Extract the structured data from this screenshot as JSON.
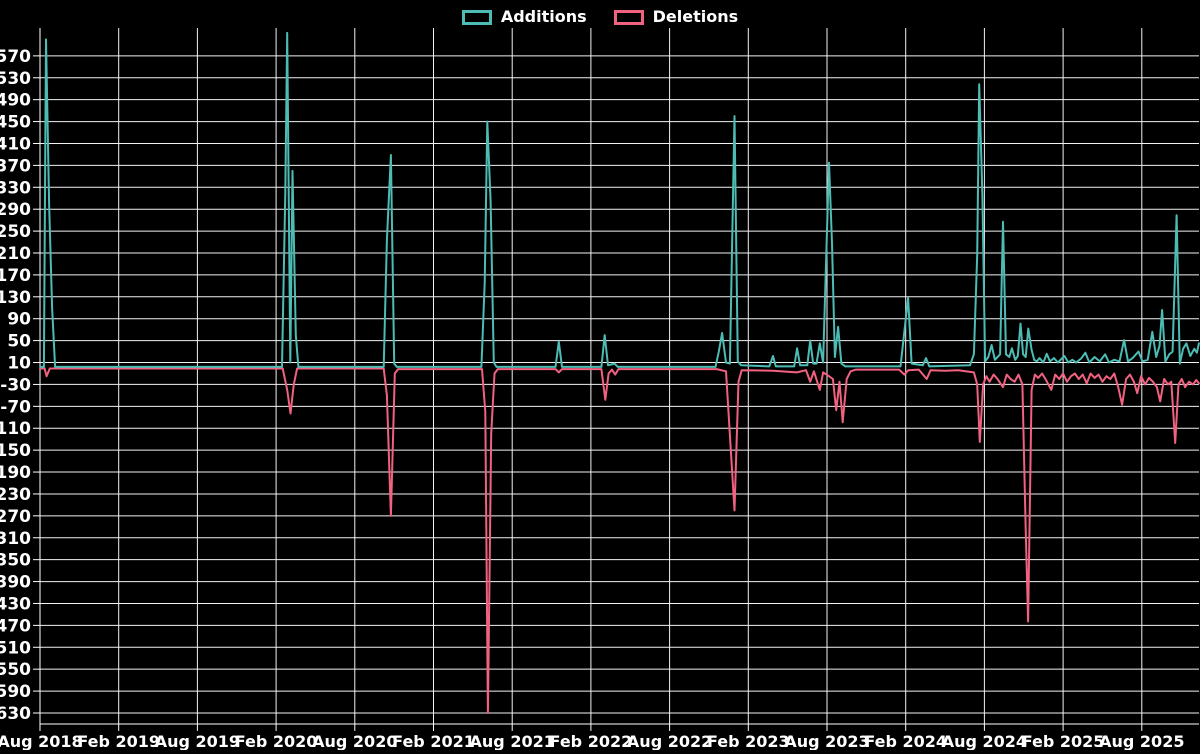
{
  "legend": {
    "additions_label": "Additions",
    "deletions_label": "Deletions"
  },
  "colors": {
    "background": "#000000",
    "grid": "#f2f2f2",
    "text": "#ffffff",
    "additions": "#4dbcb4",
    "deletions": "#f16180"
  },
  "chart_data": {
    "type": "line",
    "title": "",
    "xlabel": "",
    "ylabel": "",
    "legend_position": "top-center",
    "grid": true,
    "x_axis": {
      "unit": "months_since_first_tick",
      "tick_interval_months": 6,
      "tick_labels": [
        "Aug 2018",
        "Feb 2019",
        "Aug 2019",
        "Feb 2020",
        "Aug 2020",
        "Feb 2021",
        "Aug 2021",
        "Feb 2022",
        "Aug 2022",
        "Feb 2023",
        "Aug 2023",
        "Feb 2024",
        "Aug 2024",
        "Feb 2025",
        "Aug 2025"
      ]
    },
    "y_axis": {
      "tick_max": 570,
      "tick_min": -630,
      "tick_step": 40,
      "render_max": 615,
      "render_min": -650
    },
    "series": [
      {
        "name": "Additions",
        "color_key": "additions",
        "points": [
          [
            0,
            2
          ],
          [
            0.3,
            2
          ],
          [
            0.46,
            600
          ],
          [
            0.69,
            300
          ],
          [
            0.92,
            110
          ],
          [
            1.15,
            2
          ],
          [
            18.45,
            2
          ],
          [
            18.7,
            320
          ],
          [
            18.85,
            612
          ],
          [
            19.08,
            10
          ],
          [
            19.25,
            360
          ],
          [
            19.5,
            60
          ],
          [
            19.7,
            2
          ],
          [
            26.2,
            2
          ],
          [
            26.45,
            234
          ],
          [
            26.75,
            389
          ],
          [
            27.0,
            8
          ],
          [
            27.2,
            2
          ],
          [
            33.65,
            2
          ],
          [
            33.9,
            155
          ],
          [
            34.1,
            450
          ],
          [
            34.35,
            305
          ],
          [
            34.6,
            10
          ],
          [
            34.8,
            2
          ],
          [
            39.3,
            2
          ],
          [
            39.55,
            48
          ],
          [
            39.8,
            2
          ],
          [
            42.8,
            2
          ],
          [
            43.05,
            60
          ],
          [
            43.3,
            5
          ],
          [
            43.8,
            8
          ],
          [
            44.05,
            2
          ],
          [
            51.5,
            2
          ],
          [
            51.75,
            30
          ],
          [
            52.0,
            64
          ],
          [
            52.3,
            10
          ],
          [
            52.6,
            8
          ],
          [
            52.95,
            460
          ],
          [
            53.2,
            12
          ],
          [
            53.45,
            5
          ],
          [
            55.6,
            3
          ],
          [
            55.88,
            22
          ],
          [
            56.1,
            3
          ],
          [
            57.5,
            3
          ],
          [
            57.72,
            36
          ],
          [
            57.95,
            5
          ],
          [
            58.5,
            5
          ],
          [
            58.72,
            50
          ],
          [
            58.95,
            8
          ],
          [
            59.2,
            8
          ],
          [
            59.45,
            45
          ],
          [
            59.7,
            10
          ],
          [
            60.15,
            375
          ],
          [
            60.38,
            228
          ],
          [
            60.6,
            20
          ],
          [
            60.85,
            75
          ],
          [
            61.1,
            8
          ],
          [
            61.4,
            3
          ],
          [
            65.6,
            3
          ],
          [
            66.18,
            128
          ],
          [
            66.45,
            8
          ],
          [
            67.3,
            5
          ],
          [
            67.55,
            18
          ],
          [
            67.8,
            3
          ],
          [
            70.9,
            5
          ],
          [
            71.2,
            25
          ],
          [
            71.45,
            206
          ],
          [
            71.6,
            518
          ],
          [
            71.85,
            315
          ],
          [
            72.05,
            12
          ],
          [
            72.3,
            20
          ],
          [
            72.55,
            42
          ],
          [
            72.8,
            15
          ],
          [
            73.2,
            25
          ],
          [
            73.42,
            267
          ],
          [
            73.65,
            25
          ],
          [
            73.9,
            20
          ],
          [
            74.1,
            36
          ],
          [
            74.35,
            15
          ],
          [
            74.55,
            22
          ],
          [
            74.75,
            81
          ],
          [
            74.95,
            25
          ],
          [
            75.15,
            20
          ],
          [
            75.35,
            72
          ],
          [
            75.6,
            33
          ],
          [
            75.8,
            15
          ],
          [
            76.0,
            12
          ],
          [
            76.2,
            18
          ],
          [
            76.5,
            10
          ],
          [
            76.75,
            26
          ],
          [
            77.0,
            12
          ],
          [
            77.3,
            18
          ],
          [
            77.6,
            10
          ],
          [
            78.1,
            22
          ],
          [
            78.4,
            10
          ],
          [
            78.7,
            15
          ],
          [
            79.0,
            10
          ],
          [
            79.4,
            18
          ],
          [
            79.7,
            28
          ],
          [
            80.0,
            10
          ],
          [
            80.4,
            20
          ],
          [
            80.8,
            12
          ],
          [
            81.2,
            25
          ],
          [
            81.5,
            10
          ],
          [
            81.9,
            15
          ],
          [
            82.3,
            12
          ],
          [
            82.65,
            51
          ],
          [
            82.95,
            12
          ],
          [
            83.3,
            18
          ],
          [
            83.75,
            30
          ],
          [
            84.05,
            12
          ],
          [
            84.45,
            15
          ],
          [
            84.8,
            66
          ],
          [
            85.1,
            20
          ],
          [
            85.35,
            40
          ],
          [
            85.55,
            106
          ],
          [
            85.8,
            12
          ],
          [
            86.1,
            25
          ],
          [
            86.35,
            30
          ],
          [
            86.65,
            279
          ],
          [
            86.9,
            8
          ],
          [
            87.15,
            35
          ],
          [
            87.4,
            45
          ],
          [
            87.7,
            22
          ],
          [
            88.0,
            35
          ],
          [
            88.2,
            28
          ],
          [
            88.35,
            45
          ]
        ]
      },
      {
        "name": "Deletions",
        "color_key": "deletions",
        "points": [
          [
            0,
            -1
          ],
          [
            0.35,
            -1
          ],
          [
            0.5,
            -15
          ],
          [
            0.75,
            -1
          ],
          [
            18.5,
            -1
          ],
          [
            18.85,
            -40
          ],
          [
            19.1,
            -83
          ],
          [
            19.35,
            -30
          ],
          [
            19.6,
            -1
          ],
          [
            26.2,
            -1
          ],
          [
            26.45,
            -50
          ],
          [
            26.75,
            -270
          ],
          [
            27.05,
            -10
          ],
          [
            27.3,
            -2
          ],
          [
            33.7,
            -2
          ],
          [
            33.95,
            -80
          ],
          [
            34.15,
            -630
          ],
          [
            34.4,
            -120
          ],
          [
            34.65,
            -10
          ],
          [
            34.9,
            -2
          ],
          [
            39.3,
            -2
          ],
          [
            39.55,
            -8
          ],
          [
            39.8,
            -2
          ],
          [
            42.8,
            -2
          ],
          [
            43.1,
            -58
          ],
          [
            43.35,
            -10
          ],
          [
            43.6,
            -3
          ],
          [
            43.85,
            -12
          ],
          [
            44.1,
            -2
          ],
          [
            51.6,
            -2
          ],
          [
            52.3,
            -6
          ],
          [
            52.95,
            -260
          ],
          [
            53.25,
            -25
          ],
          [
            53.5,
            -4
          ],
          [
            55.88,
            -5
          ],
          [
            57.7,
            -8
          ],
          [
            58.4,
            -4
          ],
          [
            58.72,
            -25
          ],
          [
            59.0,
            -6
          ],
          [
            59.45,
            -40
          ],
          [
            59.7,
            -8
          ],
          [
            60.15,
            -15
          ],
          [
            60.45,
            -20
          ],
          [
            60.7,
            -77
          ],
          [
            60.95,
            -25
          ],
          [
            61.2,
            -99
          ],
          [
            61.5,
            -20
          ],
          [
            61.8,
            -6
          ],
          [
            62.2,
            -3
          ],
          [
            65.5,
            -3
          ],
          [
            65.9,
            -12
          ],
          [
            66.2,
            -4
          ],
          [
            67.0,
            -3
          ],
          [
            67.6,
            -20
          ],
          [
            67.9,
            -4
          ],
          [
            69.0,
            -5
          ],
          [
            70.0,
            -4
          ],
          [
            71.2,
            -8
          ],
          [
            71.45,
            -30
          ],
          [
            71.65,
            -135
          ],
          [
            71.9,
            -30
          ],
          [
            72.15,
            -15
          ],
          [
            72.4,
            -25
          ],
          [
            72.7,
            -12
          ],
          [
            73.0,
            -20
          ],
          [
            73.42,
            -35
          ],
          [
            73.7,
            -12
          ],
          [
            74.0,
            -20
          ],
          [
            74.3,
            -25
          ],
          [
            74.6,
            -12
          ],
          [
            74.9,
            -30
          ],
          [
            75.14,
            -287
          ],
          [
            75.33,
            -463
          ],
          [
            75.6,
            -40
          ],
          [
            75.85,
            -12
          ],
          [
            76.1,
            -18
          ],
          [
            76.4,
            -10
          ],
          [
            76.7,
            -22
          ],
          [
            77.1,
            -40
          ],
          [
            77.4,
            -12
          ],
          [
            77.7,
            -20
          ],
          [
            78.0,
            -10
          ],
          [
            78.3,
            -25
          ],
          [
            78.6,
            -15
          ],
          [
            78.9,
            -10
          ],
          [
            79.2,
            -20
          ],
          [
            79.5,
            -12
          ],
          [
            79.8,
            -28
          ],
          [
            80.1,
            -10
          ],
          [
            80.4,
            -18
          ],
          [
            80.7,
            -12
          ],
          [
            81.0,
            -25
          ],
          [
            81.3,
            -15
          ],
          [
            81.6,
            -20
          ],
          [
            81.9,
            -10
          ],
          [
            82.2,
            -35
          ],
          [
            82.5,
            -67
          ],
          [
            82.8,
            -20
          ],
          [
            83.1,
            -12
          ],
          [
            83.4,
            -25
          ],
          [
            83.65,
            -46
          ],
          [
            83.95,
            -15
          ],
          [
            84.25,
            -30
          ],
          [
            84.55,
            -18
          ],
          [
            84.85,
            -25
          ],
          [
            85.15,
            -35
          ],
          [
            85.4,
            -61
          ],
          [
            85.7,
            -20
          ],
          [
            86.0,
            -30
          ],
          [
            86.25,
            -25
          ],
          [
            86.55,
            -137
          ],
          [
            86.8,
            -30
          ],
          [
            87.05,
            -20
          ],
          [
            87.3,
            -35
          ],
          [
            87.6,
            -25
          ],
          [
            87.9,
            -30
          ],
          [
            88.15,
            -22
          ],
          [
            88.35,
            -28
          ]
        ]
      }
    ]
  }
}
